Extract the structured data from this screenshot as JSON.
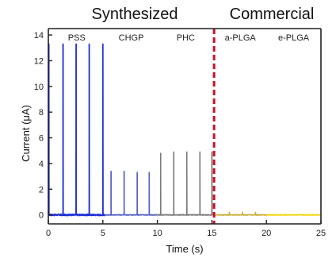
{
  "chart_data": {
    "type": "line",
    "header_left": "Synthesized",
    "header_right": "Commercial",
    "xlabel": "Time (s)",
    "ylabel": "Current (μA)",
    "xlim": [
      0,
      25
    ],
    "ylim": [
      -0.7,
      14.5
    ],
    "x_ticks": [
      0,
      5,
      10,
      15,
      20,
      25
    ],
    "y_ticks": [
      0,
      2,
      4,
      6,
      8,
      10,
      12,
      14
    ],
    "divider_x": 15.2,
    "divider_color": "#c8102e",
    "grid": false,
    "series": [
      {
        "name": "PSS",
        "color": "#1f2fd6",
        "x_range": [
          0,
          5.2
        ],
        "peaks": [
          {
            "x": 0.05,
            "y": 13.3
          },
          {
            "x": 1.35,
            "y": 13.3
          },
          {
            "x": 2.55,
            "y": 13.3
          },
          {
            "x": 3.75,
            "y": 13.3
          },
          {
            "x": 5.0,
            "y": 13.3
          }
        ]
      },
      {
        "name": "CHGP",
        "color": "#5560c4",
        "x_range": [
          5.2,
          10.0
        ],
        "peaks": [
          {
            "x": 5.75,
            "y": 3.4
          },
          {
            "x": 6.95,
            "y": 3.4
          },
          {
            "x": 8.15,
            "y": 3.3
          },
          {
            "x": 9.25,
            "y": 3.3
          }
        ]
      },
      {
        "name": "PHC",
        "color": "#7a7a7a",
        "x_range": [
          10.0,
          15.2
        ],
        "peaks": [
          {
            "x": 10.3,
            "y": 4.8
          },
          {
            "x": 11.5,
            "y": 4.9
          },
          {
            "x": 12.7,
            "y": 4.9
          },
          {
            "x": 13.9,
            "y": 4.9
          },
          {
            "x": 15.0,
            "y": 4.9
          }
        ]
      },
      {
        "name": "a-PLGA",
        "color": "#c9b03a",
        "x_range": [
          15.2,
          20.0
        ],
        "peaks": [
          {
            "x": 16.6,
            "y": 0.2
          },
          {
            "x": 17.8,
            "y": 0.2
          },
          {
            "x": 19.0,
            "y": 0.2
          }
        ]
      },
      {
        "name": "e-PLGA",
        "color": "#f2d400",
        "x_range": [
          20.0,
          25.0
        ],
        "peaks": []
      }
    ]
  }
}
